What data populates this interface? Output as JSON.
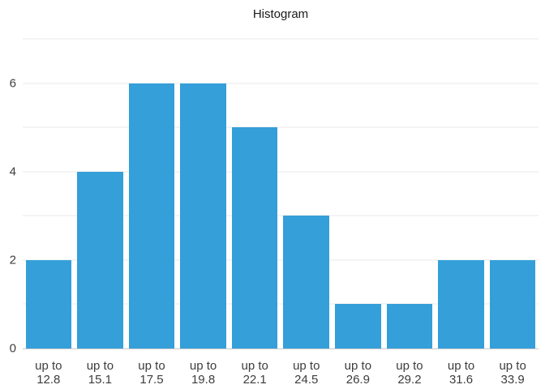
{
  "chart_data": {
    "type": "bar",
    "title": "Histogram",
    "categories": [
      "up to 12.8",
      "up to 15.1",
      "up to 17.5",
      "up to 19.8",
      "up to 22.1",
      "up to 24.5",
      "up to 26.9",
      "up to 29.2",
      "up to 31.6",
      "up to 33.9"
    ],
    "category_lines": [
      [
        "up to",
        "12.8"
      ],
      [
        "up to",
        "15.1"
      ],
      [
        "up to",
        "17.5"
      ],
      [
        "up to",
        "19.8"
      ],
      [
        "up to",
        "22.1"
      ],
      [
        "up to",
        "24.5"
      ],
      [
        "up to",
        "26.9"
      ],
      [
        "up to",
        "29.2"
      ],
      [
        "up to",
        "31.6"
      ],
      [
        "up to",
        "33.9"
      ]
    ],
    "values": [
      2,
      4,
      6,
      6,
      5,
      3,
      1,
      1,
      2,
      2
    ],
    "xlabel": "",
    "ylabel": "",
    "ylim": [
      0,
      7
    ],
    "ytick_values": [
      0,
      2,
      4,
      6
    ],
    "ytick_labels": [
      "0",
      "2",
      "4",
      "6"
    ],
    "gridline_values": [
      1,
      2,
      3,
      4,
      5,
      6,
      7
    ],
    "grid": true,
    "legend_position": "none",
    "colors": {
      "bar": "#349fd9",
      "gridline": "#e8e8e8",
      "baseline": "#c9c9c9",
      "text": "#3d3d3d",
      "title": "#1a1a1a",
      "background": "#ffffff"
    }
  }
}
